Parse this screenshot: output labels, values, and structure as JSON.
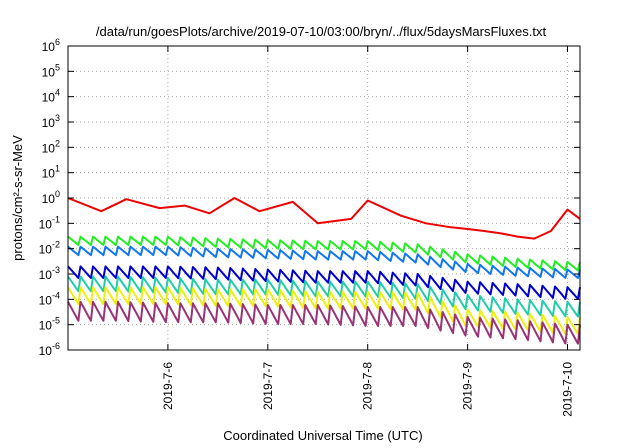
{
  "chart_data": {
    "type": "line",
    "title": "/data/run/goesPlots/archive/2019-07-10/03:00/bryn/../flux/5daysMarsFluxes.txt",
    "xlabel": "Coordinated Universal Time (UTC)",
    "ylabel": "protons/cm²-s-sr-MeV",
    "y_scale": "log",
    "ylim": [
      1e-06,
      1000000.0
    ],
    "xlim": [
      "2019-07-05T00:00",
      "2019-07-10T03:00"
    ],
    "grid": "dotted",
    "legend": "none",
    "y_ticks": [
      {
        "value": 1e-06,
        "base": "10",
        "exp": "-6"
      },
      {
        "value": 1e-05,
        "base": "10",
        "exp": "-5"
      },
      {
        "value": 0.0001,
        "base": "10",
        "exp": "-4"
      },
      {
        "value": 0.001,
        "base": "10",
        "exp": "-3"
      },
      {
        "value": 0.01,
        "base": "10",
        "exp": "-2"
      },
      {
        "value": 0.1,
        "base": "10",
        "exp": "-1"
      },
      {
        "value": 1,
        "base": "10",
        "exp": "0"
      },
      {
        "value": 10,
        "base": "10",
        "exp": "1"
      },
      {
        "value": 100,
        "base": "10",
        "exp": "2"
      },
      {
        "value": 1000,
        "base": "10",
        "exp": "3"
      },
      {
        "value": 10000,
        "base": "10",
        "exp": "4"
      },
      {
        "value": 100000,
        "base": "10",
        "exp": "5"
      },
      {
        "value": 1000000,
        "base": "10",
        "exp": "6"
      }
    ],
    "x_ticks": [
      {
        "value": "2019-07-06T00:00",
        "label": "2019-7-6"
      },
      {
        "value": "2019-07-07T00:00",
        "label": "2019-7-7"
      },
      {
        "value": "2019-07-08T00:00",
        "label": "2019-7-8"
      },
      {
        "value": "2019-07-09T00:00",
        "label": "2019-7-9"
      },
      {
        "value": "2019-07-10T00:00",
        "label": "2019-7-10"
      }
    ],
    "series": [
      {
        "color": "#ee0000",
        "x": [
          "2019-07-05T00:00",
          "2019-07-05T08:00",
          "2019-07-05T14:00",
          "2019-07-05T22:00",
          "2019-07-06T04:00",
          "2019-07-06T10:00",
          "2019-07-06T16:00",
          "2019-07-06T22:00",
          "2019-07-07T06:00",
          "2019-07-07T12:00",
          "2019-07-07T20:00",
          "2019-07-08T00:00",
          "2019-07-08T08:00",
          "2019-07-08T14:00",
          "2019-07-08T20:00",
          "2019-07-09T00:00",
          "2019-07-09T04:00",
          "2019-07-09T08:00",
          "2019-07-09T12:00",
          "2019-07-09T16:00",
          "2019-07-09T20:00",
          "2019-07-10T00:00",
          "2019-07-10T03:00"
        ],
        "y": [
          1.0,
          0.3,
          0.9,
          0.4,
          0.5,
          0.25,
          1.0,
          0.3,
          0.7,
          0.1,
          0.15,
          0.8,
          0.2,
          0.1,
          0.07,
          0.06,
          0.05,
          0.04,
          0.03,
          0.025,
          0.05,
          0.35,
          0.15
        ]
      },
      {
        "color": "#22ee22",
        "x": [
          "2019-07-05T00:00",
          "2019-07-05T12:00",
          "2019-07-06T00:00",
          "2019-07-06T12:00",
          "2019-07-07T00:00",
          "2019-07-07T12:00",
          "2019-07-08T00:00",
          "2019-07-08T12:00",
          "2019-07-09T00:00",
          "2019-07-09T12:00",
          "2019-07-10T00:00",
          "2019-07-10T03:00"
        ],
        "y": [
          0.03,
          0.03,
          0.03,
          0.025,
          0.022,
          0.02,
          0.02,
          0.015,
          0.006,
          0.004,
          0.003,
          0.003
        ],
        "amp": 0.4
      },
      {
        "color": "#1177ee",
        "x": [
          "2019-07-05T00:00",
          "2019-07-05T12:00",
          "2019-07-06T00:00",
          "2019-07-06T12:00",
          "2019-07-07T00:00",
          "2019-07-07T12:00",
          "2019-07-08T00:00",
          "2019-07-08T12:00",
          "2019-07-09T00:00",
          "2019-07-09T12:00",
          "2019-07-10T00:00",
          "2019-07-10T03:00"
        ],
        "y": [
          0.012,
          0.012,
          0.012,
          0.01,
          0.009,
          0.008,
          0.008,
          0.006,
          0.0025,
          0.0018,
          0.0015,
          0.0015
        ],
        "amp": 0.4
      },
      {
        "color": "#0000cc",
        "x": [
          "2019-07-05T00:00",
          "2019-07-05T12:00",
          "2019-07-06T00:00",
          "2019-07-06T12:00",
          "2019-07-07T00:00",
          "2019-07-07T12:00",
          "2019-07-08T00:00",
          "2019-07-08T12:00",
          "2019-07-09T00:00",
          "2019-07-09T12:00",
          "2019-07-10T00:00",
          "2019-07-10T03:00"
        ],
        "y": [
          0.002,
          0.002,
          0.002,
          0.0018,
          0.0015,
          0.0013,
          0.0013,
          0.001,
          0.0005,
          0.0004,
          0.0003,
          0.0003
        ],
        "amp": 0.55
      },
      {
        "color": "#22ccaa",
        "x": [
          "2019-07-05T00:00",
          "2019-07-05T12:00",
          "2019-07-06T00:00",
          "2019-07-06T12:00",
          "2019-07-07T00:00",
          "2019-07-07T12:00",
          "2019-07-08T00:00",
          "2019-07-08T12:00",
          "2019-07-09T00:00",
          "2019-07-09T12:00",
          "2019-07-10T00:00",
          "2019-07-10T03:00"
        ],
        "y": [
          0.0008,
          0.0008,
          0.0007,
          0.0006,
          0.0006,
          0.0005,
          0.0005,
          0.0004,
          0.00015,
          0.0001,
          8e-05,
          8e-05
        ],
        "amp": 0.7
      },
      {
        "color": "#eeee11",
        "x": [
          "2019-07-05T00:00",
          "2019-07-05T12:00",
          "2019-07-06T00:00",
          "2019-07-06T12:00",
          "2019-07-07T00:00",
          "2019-07-07T12:00",
          "2019-07-08T00:00",
          "2019-07-08T12:00",
          "2019-07-09T00:00",
          "2019-07-09T12:00",
          "2019-07-10T00:00",
          "2019-07-10T03:00"
        ],
        "y": [
          0.0003,
          0.0003,
          0.0003,
          0.00025,
          0.00025,
          0.0002,
          0.0002,
          0.00018,
          4e-05,
          3e-05,
          2e-05,
          2e-05
        ],
        "amp": 0.8
      },
      {
        "color": "#993377",
        "x": [
          "2019-07-05T00:00",
          "2019-07-05T12:00",
          "2019-07-06T00:00",
          "2019-07-06T12:00",
          "2019-07-07T00:00",
          "2019-07-07T12:00",
          "2019-07-08T00:00",
          "2019-07-08T12:00",
          "2019-07-09T00:00",
          "2019-07-09T12:00",
          "2019-07-10T00:00",
          "2019-07-10T03:00"
        ],
        "y": [
          8e-05,
          8e-05,
          7e-05,
          7e-05,
          6e-05,
          6e-05,
          5e-05,
          5e-05,
          2e-05,
          1.5e-05,
          1e-05,
          1e-05
        ],
        "amp": 0.9
      }
    ]
  }
}
